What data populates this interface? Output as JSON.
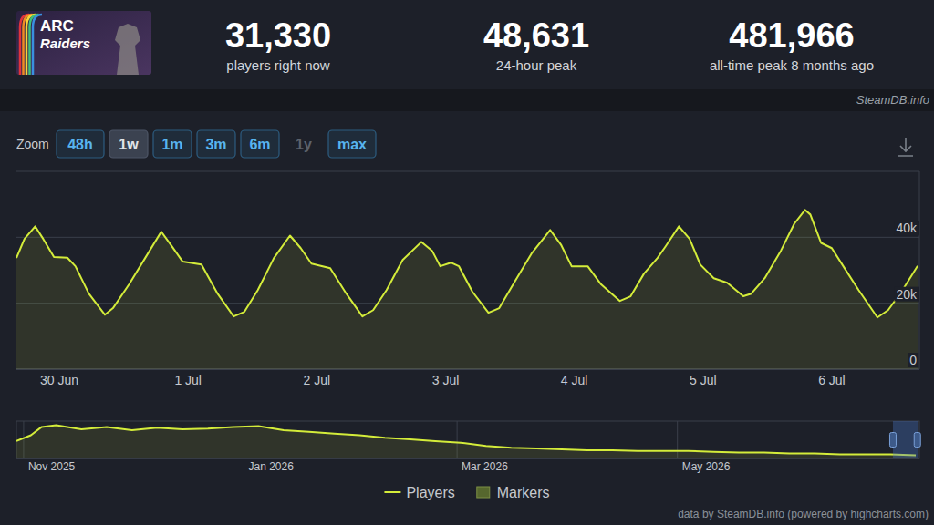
{
  "header": {
    "game_logo": "ARC Raiders",
    "stats": [
      {
        "value": "31,330",
        "label": "players right now"
      },
      {
        "value": "48,631",
        "label": "24-hour peak"
      },
      {
        "value": "481,966",
        "label": "all-time peak 8 months ago"
      }
    ],
    "source": "SteamDB.info"
  },
  "zoom": {
    "label": "Zoom",
    "buttons": [
      "48h",
      "1w",
      "1m",
      "3m",
      "6m",
      "1y",
      "max"
    ],
    "active": "1w",
    "disabled": [
      "1y"
    ]
  },
  "chart_data": [
    {
      "type": "area",
      "x": [
        "2026-06-29T16:00",
        "2026-06-29T17:30",
        "2026-06-29T19:30",
        "2026-06-29T21:00",
        "2026-06-29T23:00",
        "2026-06-30T01:30",
        "2026-06-30T03:00",
        "2026-06-30T05:30",
        "2026-06-30T08:30",
        "2026-06-30T10:00",
        "2026-06-30T13:00",
        "2026-06-30T16:00",
        "2026-06-30T19:00",
        "2026-06-30T21:00",
        "2026-06-30T23:00",
        "2026-07-01T02:30",
        "2026-07-01T05:30",
        "2026-07-01T08:30",
        "2026-07-01T10:30",
        "2026-07-01T13:00",
        "2026-07-01T16:00",
        "2026-07-01T19:00",
        "2026-07-01T21:00",
        "2026-07-01T23:00",
        "2026-07-02T02:30",
        "2026-07-02T05:30",
        "2026-07-02T08:30",
        "2026-07-02T10:30",
        "2026-07-02T13:00",
        "2026-07-02T16:00",
        "2026-07-02T19:30",
        "2026-07-02T21:30",
        "2026-07-02T23:00",
        "2026-07-03T01:00",
        "2026-07-03T02:30",
        "2026-07-03T05:00",
        "2026-07-03T08:00",
        "2026-07-03T10:00",
        "2026-07-03T13:00",
        "2026-07-03T16:00",
        "2026-07-03T19:30",
        "2026-07-03T21:30",
        "2026-07-03T23:30",
        "2026-07-04T02:30",
        "2026-07-04T05:00",
        "2026-07-04T08:30",
        "2026-07-04T10:30",
        "2026-07-04T13:00",
        "2026-07-04T15:30",
        "2026-07-04T17:00",
        "2026-07-04T19:30",
        "2026-07-04T21:30",
        "2026-07-04T23:30",
        "2026-07-05T02:00",
        "2026-07-05T04:30",
        "2026-07-05T07:30",
        "2026-07-05T09:00",
        "2026-07-05T11:30",
        "2026-07-05T14:30",
        "2026-07-05T17:00",
        "2026-07-05T19:00",
        "2026-07-05T20:00",
        "2026-07-05T22:00",
        "2026-07-06T00:00",
        "2026-07-06T02:30",
        "2026-07-06T05:00",
        "2026-07-06T08:30",
        "2026-07-06T10:30",
        "2026-07-06T13:00",
        "2026-07-06T16:00"
      ],
      "series": [
        {
          "name": "Players",
          "color": "#d4ec3a",
          "values": [
            33700,
            39500,
            43300,
            39500,
            34000,
            33800,
            31200,
            22900,
            16500,
            18500,
            25700,
            33700,
            41700,
            37200,
            32600,
            31700,
            22900,
            16000,
            17400,
            24000,
            33700,
            40500,
            36700,
            32000,
            30600,
            22900,
            16000,
            17900,
            24000,
            33100,
            38600,
            35900,
            31200,
            32300,
            31200,
            23500,
            17100,
            18500,
            26800,
            35000,
            42200,
            37800,
            31200,
            31200,
            25700,
            20700,
            22100,
            29000,
            33700,
            37200,
            43300,
            39500,
            31700,
            27600,
            26200,
            22100,
            22900,
            27600,
            35900,
            44100,
            48300,
            46900,
            38300,
            36700,
            30300,
            24000,
            15700,
            17900,
            23500,
            31300
          ]
        },
        {
          "name": "Markers",
          "color": "#56672e",
          "type": "flag",
          "values": [
            null,
            null,
            null,
            null,
            null,
            null,
            null,
            null,
            null,
            null,
            null,
            null,
            null,
            null,
            null,
            null,
            null,
            null,
            null,
            null,
            null,
            null,
            null,
            null,
            null,
            null,
            null,
            null,
            null,
            null,
            null,
            null,
            null,
            null,
            null,
            null,
            null,
            null,
            null,
            null,
            null,
            null,
            null,
            null,
            null,
            null,
            null,
            null,
            null,
            null,
            null,
            null,
            null,
            null,
            null,
            null,
            null,
            null,
            null,
            null,
            null,
            null,
            null,
            null,
            null,
            null,
            null,
            null,
            null,
            null
          ]
        }
      ],
      "xlim": [
        "2026-06-29T16:00",
        "2026-07-06T16:20"
      ],
      "xticks": [
        {
          "value": "2026-06-30T00:00",
          "label": "30 Jun"
        },
        {
          "value": "2026-07-01T00:00",
          "label": "1 Jul"
        },
        {
          "value": "2026-07-02T00:00",
          "label": "2 Jul"
        },
        {
          "value": "2026-07-03T00:00",
          "label": "3 Jul"
        },
        {
          "value": "2026-07-04T00:00",
          "label": "4 Jul"
        },
        {
          "value": "2026-07-05T00:00",
          "label": "5 Jul"
        },
        {
          "value": "2026-07-06T00:00",
          "label": "6 Jul"
        }
      ],
      "ylim": [
        0,
        60000
      ],
      "yticks": [
        0,
        {
          "value": 20000,
          "label": "20k"
        },
        {
          "value": 40000,
          "label": "40k"
        }
      ],
      "grid": true,
      "legend": "bottom"
    },
    {
      "type": "area",
      "x": [
        "2025-10-30",
        "2025-11-03",
        "2025-11-06",
        "2025-11-10",
        "2025-11-17",
        "2025-11-24",
        "2025-12-01",
        "2025-12-08",
        "2025-12-15",
        "2025-12-22",
        "2025-12-29",
        "2026-01-05",
        "2026-01-12",
        "2026-01-19",
        "2026-01-26",
        "2026-02-02",
        "2026-02-09",
        "2026-02-16",
        "2026-02-23",
        "2026-03-02",
        "2026-03-09",
        "2026-03-16",
        "2026-03-23",
        "2026-03-30",
        "2026-04-06",
        "2026-04-13",
        "2026-04-20",
        "2026-04-27",
        "2026-05-04",
        "2026-05-11",
        "2026-05-18",
        "2026-05-25",
        "2026-06-01",
        "2026-06-08",
        "2026-06-15",
        "2026-06-22",
        "2026-06-29",
        "2026-07-06"
      ],
      "series": [
        {
          "color": "#d4ec3a",
          "values": [
            233000,
            311000,
            422000,
            444000,
            389000,
            422000,
            378000,
            411000,
            389000,
            400000,
            422000,
            433000,
            378000,
            356000,
            333000,
            311000,
            278000,
            256000,
            233000,
            211000,
            167000,
            144000,
            133000,
            122000,
            111000,
            111000,
            100000,
            100000,
            100000,
            89000,
            78000,
            78000,
            67000,
            67000,
            56000,
            56000,
            56000,
            44000
          ]
        }
      ],
      "xlim": [
        "2025-10-30",
        "2026-07-07"
      ],
      "xticks": [
        {
          "value": "2025-11-01",
          "label": "Nov 2025"
        },
        {
          "value": "2026-01-01",
          "label": "Jan 2026"
        },
        {
          "value": "2026-03-01",
          "label": "Mar 2026"
        },
        {
          "value": "2026-05-01",
          "label": "May 2026"
        }
      ],
      "ylim": [
        0,
        500000
      ],
      "tick_labels": "x",
      "grid": true
    }
  ],
  "credits": "data by SteamDB.info (powered by highcharts.com)"
}
